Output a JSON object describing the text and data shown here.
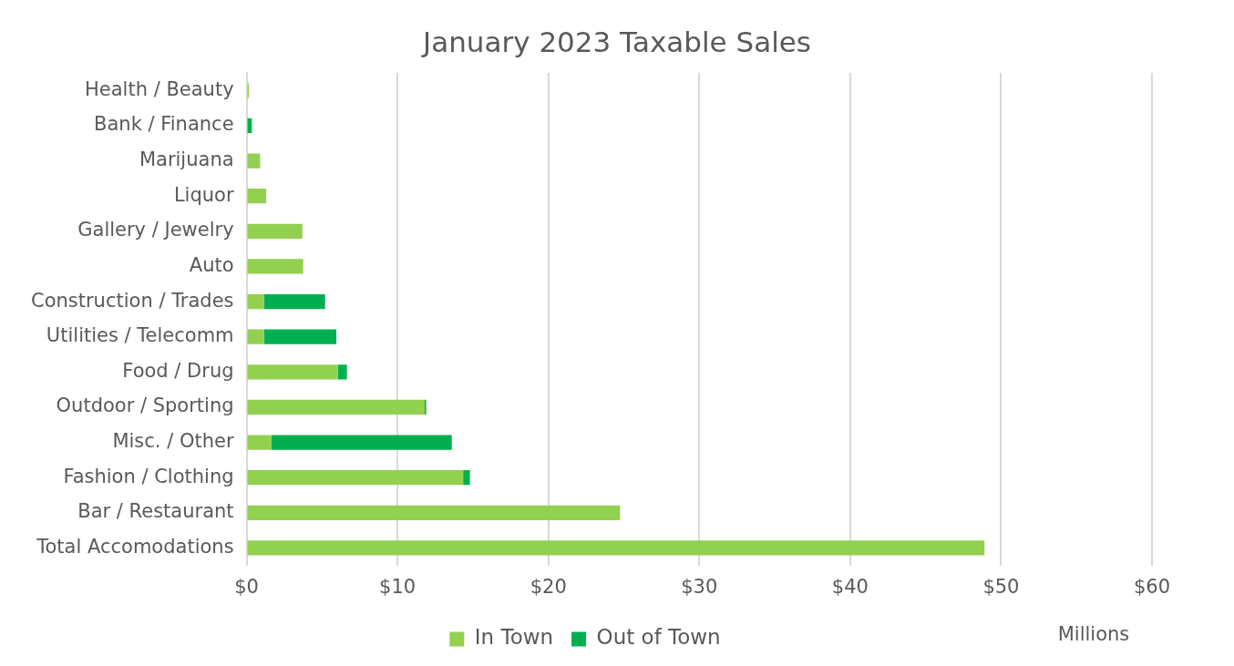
{
  "chart_data": {
    "type": "bar",
    "orientation": "horizontal",
    "stacked": true,
    "title": "January 2023 Taxable Sales",
    "xlabel": "Millions",
    "categories": [
      "Health / Beauty",
      "Bank / Finance",
      "Marijuana",
      "Liquor",
      "Gallery / Jewelry",
      "Auto",
      "Construction / Trades",
      "Utilities / Telecomm",
      "Food / Drug",
      "Outdoor / Sporting",
      "Misc. / Other",
      "Fashion / Clothing",
      "Bar / Restaurant",
      "Total Accomodations"
    ],
    "series": [
      {
        "name": "In Town",
        "color": "#92d050",
        "values": [
          0.15,
          0,
          0.9,
          1.3,
          3.7,
          3.75,
          1.15,
          1.15,
          6.05,
          11.8,
          1.65,
          14.35,
          24.75,
          48.9
        ]
      },
      {
        "name": "Out of Town",
        "color": "#00b050",
        "values": [
          0,
          0.35,
          0,
          0,
          0,
          0,
          4.05,
          4.8,
          0.6,
          0.1,
          11.95,
          0.45,
          0,
          0
        ]
      }
    ],
    "xlim": [
      0,
      60
    ],
    "xticks": [
      {
        "value": 0,
        "label": "$0"
      },
      {
        "value": 10,
        "label": "$10"
      },
      {
        "value": 20,
        "label": "$20"
      },
      {
        "value": 30,
        "label": "$30"
      },
      {
        "value": 40,
        "label": "$40"
      },
      {
        "value": 50,
        "label": "$50"
      },
      {
        "value": 60,
        "label": "$60"
      }
    ],
    "grid": "x",
    "legend": "bottom"
  }
}
